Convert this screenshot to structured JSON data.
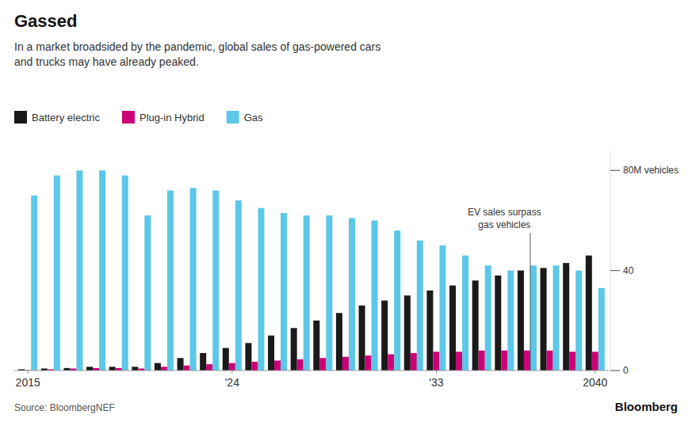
{
  "chart_data": {
    "type": "bar",
    "title": "Gassed",
    "subtitle": "In a market broadsided by the pandemic, global sales of gas-powered cars\nand trucks may have already peaked.",
    "source": "Source: BloombergNEF",
    "branding": "Bloomberg",
    "categories": [
      "2015",
      null,
      null,
      null,
      null,
      null,
      null,
      null,
      null,
      "'24",
      null,
      null,
      null,
      null,
      null,
      null,
      null,
      null,
      "'33",
      null,
      null,
      null,
      null,
      null,
      null,
      "2040"
    ],
    "series": [
      {
        "name": "Battery electric",
        "color": "#1a1a1a",
        "values": [
          0.5,
          0.8,
          1.0,
          1.5,
          1.5,
          1.5,
          3.0,
          5.0,
          7.0,
          9.0,
          11.0,
          14.0,
          17.0,
          20.0,
          23.0,
          26.0,
          28.0,
          30.0,
          32.0,
          34.0,
          36.0,
          38.0,
          40.0,
          41.0,
          43.0,
          46.0
        ]
      },
      {
        "name": "Plug-in Hybrid",
        "color": "#cc0077",
        "values": [
          0.2,
          0.5,
          0.8,
          1.0,
          1.0,
          0.8,
          1.5,
          2.0,
          2.5,
          3.0,
          3.5,
          4.0,
          4.5,
          5.0,
          5.5,
          6.0,
          6.5,
          7.0,
          7.5,
          7.5,
          8.0,
          8.0,
          8.0,
          8.0,
          7.5,
          7.5
        ]
      },
      {
        "name": "Gas",
        "color": "#5bc8e8",
        "values": [
          70,
          78,
          80,
          80,
          78,
          62,
          72,
          73,
          72,
          68,
          65,
          63,
          62,
          62,
          61,
          60,
          56,
          52,
          50,
          46,
          42,
          40,
          42,
          42,
          40,
          33
        ]
      }
    ],
    "ylim": [
      0,
      88
    ],
    "yticks": [
      0,
      40,
      {
        "value": 80,
        "label": "80M vehicles"
      }
    ],
    "annotations": [
      {
        "text": "EV sales surpass\ngas vehicles",
        "x": 22,
        "y": 55
      }
    ],
    "legend": "top left",
    "grid": false
  }
}
